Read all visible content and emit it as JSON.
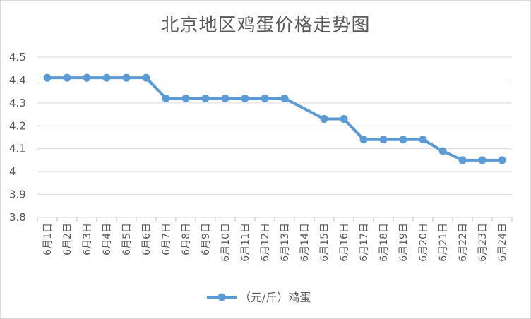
{
  "chart_data": {
    "type": "line",
    "title": "北京地区鸡蛋价格走势图",
    "categories": [
      "6月1日",
      "6月2日",
      "6月3日",
      "6月4日",
      "6月5日",
      "6月6日",
      "6月7日",
      "6月8日",
      "6月9日",
      "6月10日",
      "6月11日",
      "6月12日",
      "6月13日",
      "6月14日",
      "6月15日",
      "6月16日",
      "6月17日",
      "6月18日",
      "6月19日",
      "6月20日",
      "6月21日",
      "6月22日",
      "6月23日",
      "6月24日"
    ],
    "series": [
      {
        "name": "（元/斤）鸡蛋",
        "color": "#5b9bd5",
        "values": [
          4.41,
          4.41,
          4.41,
          4.41,
          4.41,
          4.41,
          4.32,
          4.32,
          4.32,
          4.32,
          4.32,
          4.32,
          4.32,
          null,
          4.23,
          4.23,
          4.14,
          4.14,
          4.14,
          4.14,
          4.09,
          4.05,
          4.05,
          4.05
        ],
        "connect_gaps": true
      }
    ],
    "ylim": [
      3.8,
      4.5
    ],
    "yticks": [
      "3.8",
      "3.9",
      "4",
      "4.1",
      "4.2",
      "4.3",
      "4.4",
      "4.5"
    ],
    "grid": true,
    "legend": "bottom",
    "xlabel": "",
    "ylabel": ""
  }
}
